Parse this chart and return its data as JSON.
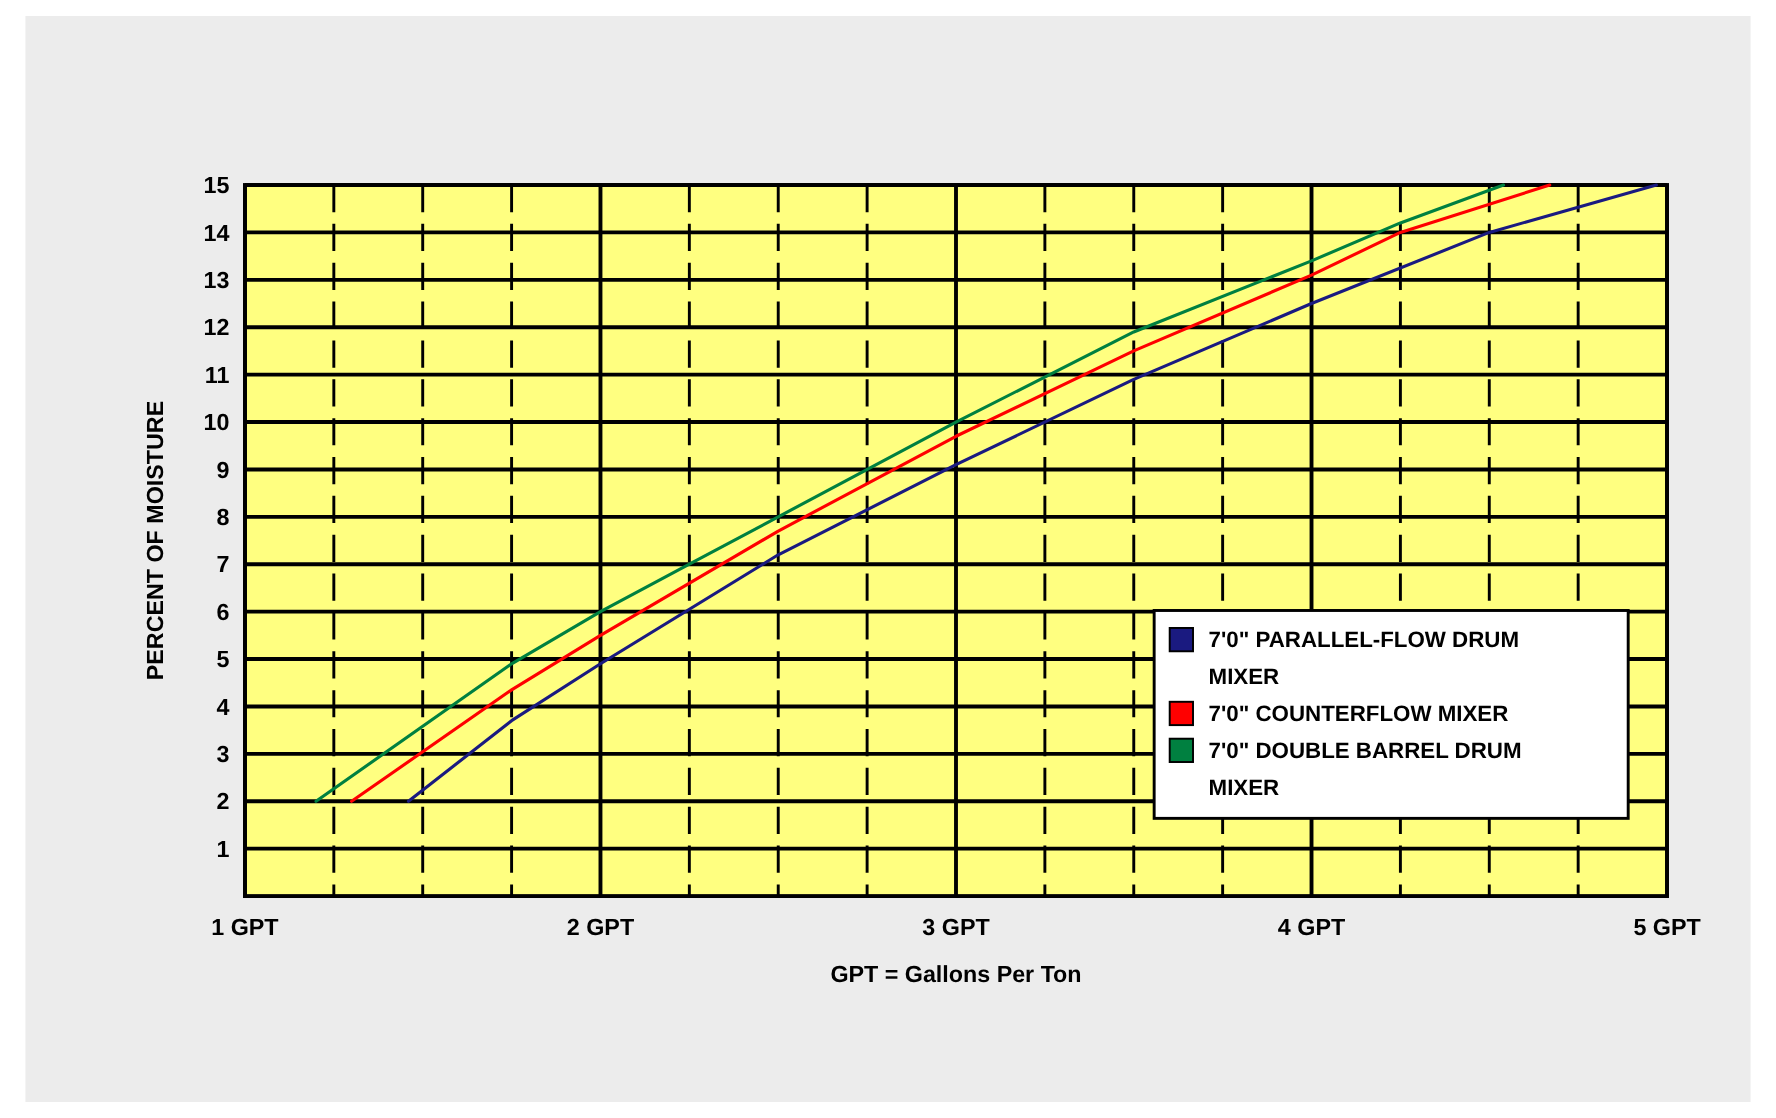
{
  "chart_data": {
    "type": "line",
    "xlabel": "GPT = Gallons Per Ton",
    "ylabel": "PERCENT OF MOISTURE",
    "xlim": [
      1,
      5
    ],
    "xticks": [
      {
        "value": 1,
        "label": "1 GPT"
      },
      {
        "value": 1.25,
        "label": null
      },
      {
        "value": 1.5,
        "label": null
      },
      {
        "value": 1.75,
        "label": null
      },
      {
        "value": 2,
        "label": "2 GPT"
      },
      {
        "value": 2.25,
        "label": null
      },
      {
        "value": 2.5,
        "label": null
      },
      {
        "value": 2.75,
        "label": null
      },
      {
        "value": 3,
        "label": "3 GPT"
      },
      {
        "value": 3.25,
        "label": null
      },
      {
        "value": 3.5,
        "label": null
      },
      {
        "value": 3.75,
        "label": null
      },
      {
        "value": 4,
        "label": "4 GPT"
      },
      {
        "value": 4.25,
        "label": null
      },
      {
        "value": 4.5,
        "label": null
      },
      {
        "value": 4.75,
        "label": null
      },
      {
        "value": 5,
        "label": "5 GPT"
      }
    ],
    "ylim": [
      0,
      15
    ],
    "yticks": [
      1,
      2,
      3,
      4,
      5,
      6,
      7,
      8,
      9,
      10,
      11,
      12,
      13,
      14,
      15
    ],
    "grid": true,
    "legend": "bottom right",
    "marker": "none",
    "line_style": "solid",
    "series": [
      {
        "name": "7'0\" PARALLEL-FLOW DRUM MIXER",
        "color": "#1a1a80",
        "x": [
          1.46,
          1.75,
          2,
          2.5,
          3,
          3.5,
          4,
          4.5,
          4.97
        ],
        "values": [
          2,
          3.7,
          4.9,
          7.2,
          9.1,
          10.9,
          12.5,
          14,
          15
        ]
      },
      {
        "name": "7'0\" COUNTERFLOW MIXER",
        "color": "#ff0000",
        "x": [
          1.3,
          1.75,
          2,
          2.5,
          3,
          3.5,
          4,
          4.25,
          4.67
        ],
        "values": [
          2,
          4.35,
          5.5,
          7.7,
          9.7,
          11.5,
          13.1,
          14,
          15
        ]
      },
      {
        "name": "7'0\" DOUBLE BARREL DRUM MIXER",
        "color": "#008040",
        "x": [
          1.2,
          1.75,
          2,
          2.25,
          2.5,
          3,
          3.5,
          4,
          4.25,
          4.54
        ],
        "values": [
          2,
          4.9,
          6,
          7,
          8,
          10,
          11.9,
          13.4,
          14.2,
          15
        ]
      }
    ]
  }
}
